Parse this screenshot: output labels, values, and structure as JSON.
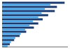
{
  "chart_data": {
    "type": "bar",
    "orientation": "horizontal",
    "categories": [
      null,
      null,
      null,
      null,
      null,
      null,
      null,
      null,
      null,
      null,
      null
    ],
    "series": [
      {
        "color": "#1a3a6e",
        "values": [
          28.5,
          25.0,
          24.0,
          21.0,
          18.5,
          16.5,
          14.5,
          11.0,
          8.0,
          5.5,
          3.5
        ]
      },
      {
        "color": "#4da6e8",
        "values": [
          22.0,
          19.5,
          18.0,
          16.5,
          14.0,
          12.5,
          10.5,
          8.5,
          6.0,
          4.0,
          2.5
        ]
      }
    ],
    "xlim": [
      0,
      30
    ],
    "tick_labels": false,
    "grid": false
  }
}
